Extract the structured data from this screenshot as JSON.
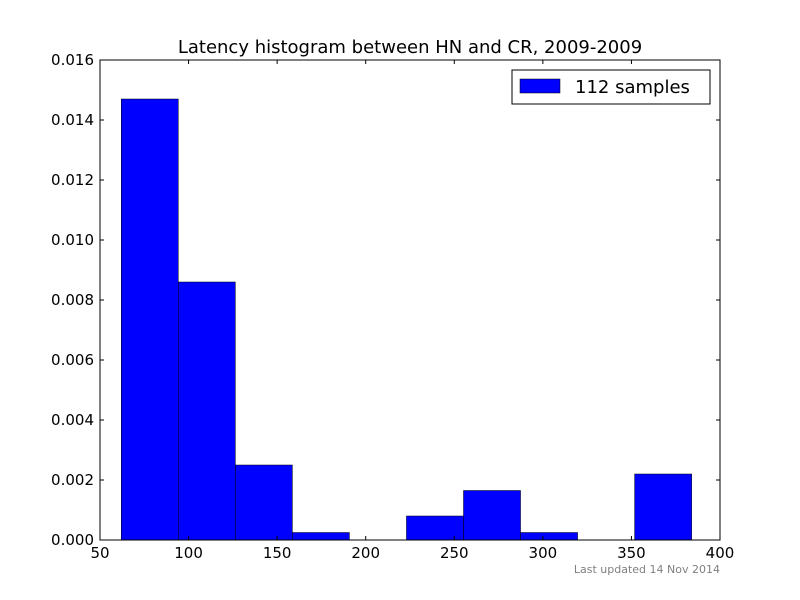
{
  "chart_data": {
    "type": "bar",
    "title": "Latency histogram between HN and CR, 2009-2009",
    "xlabel": "",
    "ylabel": "",
    "xlim": [
      50,
      400
    ],
    "ylim": [
      0,
      0.016
    ],
    "x_ticks": [
      "50",
      "100",
      "150",
      "200",
      "250",
      "300",
      "350",
      "400"
    ],
    "y_ticks": [
      "0.000",
      "0.002",
      "0.004",
      "0.006",
      "0.008",
      "0.010",
      "0.012",
      "0.014",
      "0.016"
    ],
    "legend_position": "top-right",
    "grid": false,
    "bar_color": "#0000ff",
    "series": [
      {
        "name": "112 samples",
        "bins": [
          {
            "x0": 62,
            "x1": 94.2,
            "value": 0.0147
          },
          {
            "x0": 94.2,
            "x1": 126.4,
            "value": 0.0086
          },
          {
            "x0": 126.4,
            "x1": 158.6,
            "value": 0.0025
          },
          {
            "x0": 158.6,
            "x1": 190.8,
            "value": 0.00025
          },
          {
            "x0": 190.8,
            "x1": 223,
            "value": 0
          },
          {
            "x0": 223,
            "x1": 255.2,
            "value": 0.0008
          },
          {
            "x0": 255.2,
            "x1": 287.4,
            "value": 0.00165
          },
          {
            "x0": 287.4,
            "x1": 319.6,
            "value": 0.00025
          },
          {
            "x0": 319.6,
            "x1": 351.8,
            "value": 0
          },
          {
            "x0": 351.8,
            "x1": 384,
            "value": 0.0022
          }
        ]
      }
    ]
  },
  "footer": {
    "updated": "Last updated 14 Nov 2014"
  }
}
